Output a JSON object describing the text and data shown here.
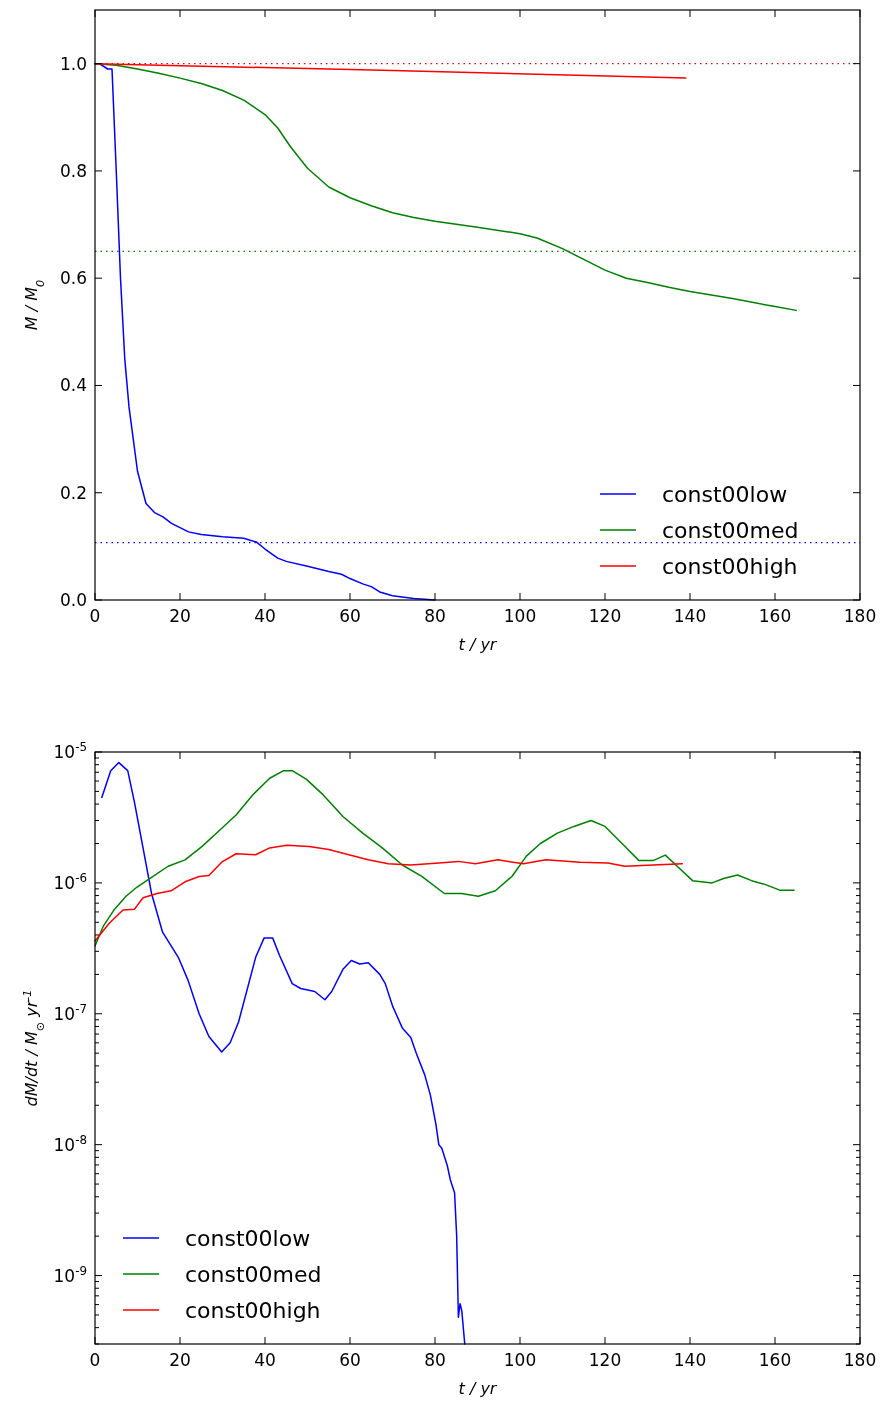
{
  "chart_data": [
    {
      "type": "line",
      "xlabel": "t / yr",
      "ylabel": "M / M$_{0}$",
      "xlim": [
        0,
        180
      ],
      "xticks": [
        0,
        20,
        40,
        60,
        80,
        100,
        120,
        140,
        160,
        180
      ],
      "ylim": [
        0,
        1.1
      ],
      "yticks": [
        {
          "value": 0,
          "label": "0.0"
        },
        {
          "value": 0.2,
          "label": "0.2"
        },
        {
          "value": 0.4,
          "label": "0.4"
        },
        {
          "value": 0.6,
          "label": "0.6"
        },
        {
          "value": 0.8,
          "label": "0.8"
        },
        {
          "value": 1.0,
          "label": "1.0"
        }
      ],
      "legend": "bottom right",
      "line_style": "solid",
      "ref_lines": [
        {
          "axis": "y",
          "value": 1.0,
          "color": "#ff0000",
          "line_style": "dotted"
        },
        {
          "axis": "y",
          "value": 0.65,
          "color": "#008000",
          "line_style": "dotted"
        },
        {
          "axis": "y",
          "value": 0.107,
          "color": "#0000ff",
          "line_style": "dotted"
        }
      ],
      "series": [
        {
          "name": "const00low",
          "color": "#0000ff",
          "x": [
            0,
            1,
            3,
            4,
            5,
            6,
            7,
            8,
            9,
            10,
            12,
            14,
            16,
            18,
            20,
            22,
            25,
            30,
            35,
            38,
            40,
            43,
            45,
            50,
            55,
            58,
            60,
            63,
            65,
            67,
            70,
            75,
            80
          ],
          "values": [
            1.0,
            1.0,
            0.99,
            0.99,
            0.8,
            0.6,
            0.45,
            0.36,
            0.3,
            0.24,
            0.18,
            0.163,
            0.155,
            0.143,
            0.135,
            0.127,
            0.122,
            0.118,
            0.115,
            0.108,
            0.095,
            0.078,
            0.072,
            0.063,
            0.053,
            0.048,
            0.04,
            0.03,
            0.025,
            0.015,
            0.008,
            0.003,
            0.0
          ]
        },
        {
          "name": "const00med",
          "color": "#008000",
          "x": [
            0,
            5,
            10,
            15,
            20,
            25,
            30,
            35,
            40,
            43,
            46,
            50,
            55,
            60,
            65,
            70,
            75,
            80,
            90,
            100,
            104,
            110,
            115,
            120,
            125,
            130,
            135,
            140,
            150,
            160,
            165
          ],
          "values": [
            1.0,
            0.997,
            0.99,
            0.982,
            0.973,
            0.963,
            0.95,
            0.932,
            0.905,
            0.88,
            0.845,
            0.805,
            0.77,
            0.75,
            0.735,
            0.722,
            0.713,
            0.706,
            0.695,
            0.683,
            0.675,
            0.655,
            0.635,
            0.615,
            0.6,
            0.592,
            0.583,
            0.575,
            0.562,
            0.547,
            0.54
          ]
        },
        {
          "name": "const00high",
          "color": "#ff0000",
          "x": [
            0,
            70,
            139
          ],
          "values": [
            1.0,
            0.987,
            0.973
          ]
        }
      ]
    },
    {
      "type": "line",
      "xlabel": "t / yr",
      "ylabel": "dM/dt / M$_{⊙}$ yr$^{-1}$",
      "log": "y",
      "xlim": [
        0,
        180
      ],
      "xticks": [
        0,
        20,
        40,
        60,
        80,
        100,
        120,
        140,
        160,
        180
      ],
      "ylim": [
        3e-10,
        1e-05
      ],
      "yticks": [
        {
          "value": 1e-09,
          "label": "10$^{-9}$"
        },
        {
          "value": 1e-08,
          "label": "10$^{-8}$"
        },
        {
          "value": 1e-07,
          "label": "10$^{-7}$"
        },
        {
          "value": 1e-06,
          "label": "10$^{-6}$"
        },
        {
          "value": 1e-05,
          "label": "10$^{-5}$"
        },
        {
          "value": 3e-10,
          "label": null
        },
        {
          "value": 4e-10,
          "label": null
        },
        {
          "value": 5e-10,
          "label": null
        },
        {
          "value": 6e-10,
          "label": null
        },
        {
          "value": 7e-10,
          "label": null
        },
        {
          "value": 8e-10,
          "label": null
        },
        {
          "value": 9e-10,
          "label": null
        },
        {
          "value": 2e-09,
          "label": null
        },
        {
          "value": 3e-09,
          "label": null
        },
        {
          "value": 4e-09,
          "label": null
        },
        {
          "value": 5e-09,
          "label": null
        },
        {
          "value": 6e-09,
          "label": null
        },
        {
          "value": 7e-09,
          "label": null
        },
        {
          "value": 8e-09,
          "label": null
        },
        {
          "value": 9e-09,
          "label": null
        },
        {
          "value": 2e-08,
          "label": null
        },
        {
          "value": 3e-08,
          "label": null
        },
        {
          "value": 4e-08,
          "label": null
        },
        {
          "value": 5e-08,
          "label": null
        },
        {
          "value": 6e-08,
          "label": null
        },
        {
          "value": 7e-08,
          "label": null
        },
        {
          "value": 8e-08,
          "label": null
        },
        {
          "value": 9e-08,
          "label": null
        },
        {
          "value": 2e-07,
          "label": null
        },
        {
          "value": 3e-07,
          "label": null
        },
        {
          "value": 4e-07,
          "label": null
        },
        {
          "value": 5e-07,
          "label": null
        },
        {
          "value": 6e-07,
          "label": null
        },
        {
          "value": 7e-07,
          "label": null
        },
        {
          "value": 8e-07,
          "label": null
        },
        {
          "value": 9e-07,
          "label": null
        },
        {
          "value": 2e-06,
          "label": null
        },
        {
          "value": 3e-06,
          "label": null
        },
        {
          "value": 4e-06,
          "label": null
        },
        {
          "value": 5e-06,
          "label": null
        },
        {
          "value": 6e-06,
          "label": null
        },
        {
          "value": 7e-06,
          "label": null
        },
        {
          "value": 8e-06,
          "label": null
        },
        {
          "value": 9e-06,
          "label": null
        }
      ],
      "legend": "bottom left",
      "line_style": "solid",
      "series": [
        {
          "name": "const00low",
          "color": "#0000ff",
          "x": [
            1.6,
            3.7,
            5.6,
            7.7,
            9.3,
            11.3,
            13.3,
            15.9,
            19.6,
            21.9,
            24.5,
            26.8,
            29.8,
            31.8,
            33.8,
            37.8,
            39.8,
            41.8,
            43.4,
            46.4,
            48.4,
            51.7,
            54.1,
            55.7,
            58.4,
            60.3,
            62.3,
            64.3,
            67,
            68.3,
            70,
            72.3,
            74.3,
            75.6,
            77.6,
            78.9,
            80.2,
            80.9,
            81.6,
            82.9,
            83.6,
            84.6,
            85.1,
            85.5,
            85.9,
            86.3,
            87.0
          ],
          "values": [
            4.5e-06,
            7.2e-06,
            8.3e-06,
            7.2e-06,
            4.1e-06,
            1.85e-06,
            8.3e-07,
            4.2e-07,
            2.7e-07,
            1.8e-07,
            1e-07,
            6.7e-08,
            5.1e-08,
            6e-08,
            8.7e-08,
            2.7e-07,
            3.8e-07,
            3.8e-07,
            2.8e-07,
            1.7e-07,
            1.56e-07,
            1.48e-07,
            1.28e-07,
            1.48e-07,
            2.2e-07,
            2.55e-07,
            2.4e-07,
            2.45e-07,
            2e-07,
            1.7e-07,
            1.15e-07,
            7.8e-08,
            6.6e-08,
            5e-08,
            3.4e-08,
            2.4e-08,
            1.44e-08,
            1e-08,
            9.4e-09,
            6.9e-09,
            5.4e-09,
            4.3e-09,
            2e-09,
            4.8e-10,
            6.1e-10,
            5.4e-10,
            3e-10
          ]
        },
        {
          "name": "const00med",
          "color": "#008000",
          "x": [
            0,
            2,
            4.6,
            7.3,
            9.9,
            13.3,
            17.2,
            21.2,
            25.2,
            29.2,
            33.2,
            37.1,
            41.1,
            44.4,
            46.4,
            49.7,
            53.7,
            58.4,
            63,
            67.6,
            72.3,
            76.9,
            82.2,
            86.2,
            90.2,
            94.2,
            98.1,
            101.5,
            104.8,
            108.8,
            112.7,
            116.7,
            120,
            124,
            128,
            131.3,
            134.2,
            137.3,
            140.6,
            145.2,
            147.9,
            151.2,
            154.5,
            157.8,
            161.1,
            164.5
          ],
          "values": [
            3.3e-07,
            4.7e-07,
            6.3e-07,
            7.9e-07,
            9.3e-07,
            1.1e-06,
            1.34e-06,
            1.5e-06,
            1.9e-06,
            2.5e-06,
            3.3e-06,
            4.7e-06,
            6.3e-06,
            7.2e-06,
            7.2e-06,
            6.2e-06,
            4.7e-06,
            3.2e-06,
            2.4e-06,
            1.85e-06,
            1.37e-06,
            1.12e-06,
            8.3e-07,
            8.3e-07,
            7.9e-07,
            8.7e-07,
            1.12e-06,
            1.6e-06,
            2e-06,
            2.4e-06,
            2.7e-06,
            3e-06,
            2.7e-06,
            2e-06,
            1.48e-06,
            1.48e-06,
            1.63e-06,
            1.31e-06,
            1.04e-06,
            1e-06,
            1.08e-06,
            1.15e-06,
            1.04e-06,
            9.7e-07,
            8.8e-07,
            8.8e-07
          ]
        },
        {
          "name": "const00high",
          "color": "#ff0000",
          "x": [
            0,
            3.3,
            6.6,
            9.3,
            11.3,
            14.6,
            17.9,
            21.2,
            24.5,
            26.8,
            29.8,
            33.2,
            37.8,
            41.1,
            45.1,
            50.4,
            55,
            59.7,
            64.3,
            69,
            74.3,
            80.9,
            85.5,
            89.5,
            94.8,
            100.8,
            106.1,
            114.1,
            120.7,
            124.7,
            131.3,
            138.2
          ],
          "values": [
            3.6e-07,
            4.9e-07,
            6.2e-07,
            6.3e-07,
            7.7e-07,
            8.3e-07,
            8.7e-07,
            1.02e-06,
            1.12e-06,
            1.14e-06,
            1.44e-06,
            1.67e-06,
            1.64e-06,
            1.85e-06,
            1.94e-06,
            1.9e-06,
            1.8e-06,
            1.64e-06,
            1.5e-06,
            1.4e-06,
            1.37e-06,
            1.42e-06,
            1.46e-06,
            1.4e-06,
            1.5e-06,
            1.4e-06,
            1.5e-06,
            1.44e-06,
            1.42e-06,
            1.34e-06,
            1.37e-06,
            1.4e-06
          ]
        }
      ]
    }
  ]
}
